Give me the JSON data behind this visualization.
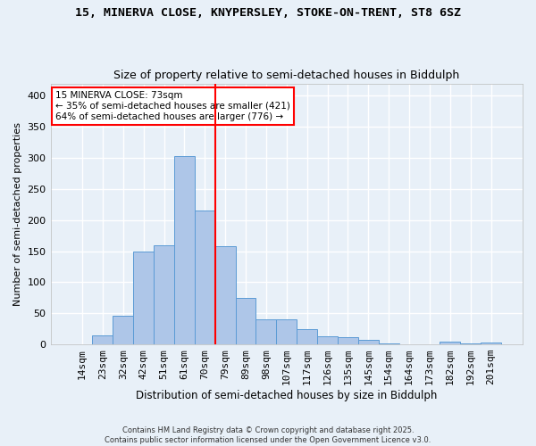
{
  "title_line1": "15, MINERVA CLOSE, KNYPERSLEY, STOKE-ON-TRENT, ST8 6SZ",
  "title_line2": "Size of property relative to semi-detached houses in Biddulph",
  "xlabel": "Distribution of semi-detached houses by size in Biddulph",
  "ylabel": "Number of semi-detached properties",
  "categories": [
    "14sqm",
    "23sqm",
    "32sqm",
    "42sqm",
    "51sqm",
    "61sqm",
    "70sqm",
    "79sqm",
    "89sqm",
    "98sqm",
    "107sqm",
    "117sqm",
    "126sqm",
    "135sqm",
    "145sqm",
    "154sqm",
    "164sqm",
    "173sqm",
    "182sqm",
    "192sqm",
    "201sqm"
  ],
  "values": [
    0,
    15,
    46,
    150,
    160,
    303,
    215,
    158,
    75,
    40,
    40,
    25,
    13,
    11,
    8,
    2,
    0,
    0,
    4,
    2,
    3
  ],
  "bar_color": "#aec6e8",
  "bar_edge_color": "#5b9bd5",
  "bg_color": "#e8f0f8",
  "grid_color": "#ffffff",
  "vline_x_idx": 4.5,
  "vline_color": "red",
  "annotation_text": "15 MINERVA CLOSE: 73sqm\n← 35% of semi-detached houses are smaller (421)\n64% of semi-detached houses are larger (776) →",
  "annotation_box_color": "white",
  "annotation_box_edge": "red",
  "footnote": "Contains HM Land Registry data © Crown copyright and database right 2025.\nContains public sector information licensed under the Open Government Licence v3.0.",
  "ylim": [
    0,
    420
  ],
  "yticks": [
    0,
    50,
    100,
    150,
    200,
    250,
    300,
    350,
    400
  ]
}
